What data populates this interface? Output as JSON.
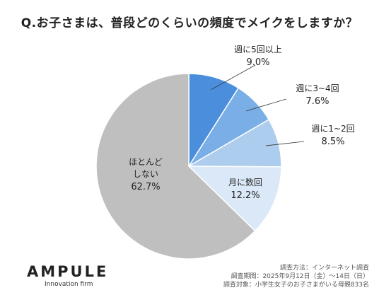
{
  "title": "Q.お子さまは、普段どのくらいの頻度でメイクをしますか？",
  "chart_data": {
    "type": "pie",
    "start_angle_deg": 0,
    "direction": "clockwise",
    "slices": [
      {
        "label": "週に5回以上",
        "value": 9.0,
        "value_text": "9.0%",
        "color": "#4b8fdc"
      },
      {
        "label": "週に3~4回",
        "value": 7.6,
        "value_text": "7.6%",
        "color": "#7aaee6"
      },
      {
        "label": "週に1~2回",
        "value": 8.5,
        "value_text": "8.5%",
        "color": "#adcdee"
      },
      {
        "label": "月に数回",
        "value": 12.2,
        "value_text": "12.2%",
        "color": "#dbe8f7"
      },
      {
        "label": "ほとんど\nしない",
        "value": 62.7,
        "value_text": "62.7%",
        "color": "#bfbfbf"
      }
    ]
  },
  "brand": {
    "name": "AMPULE",
    "tagline": "Innovation firm"
  },
  "survey": [
    "調査方法：インターネット調査",
    "調査期間：2025年9月12日（金）～14日（日）",
    "調査対象：小学生女子のお子さまがいる母親833名"
  ]
}
